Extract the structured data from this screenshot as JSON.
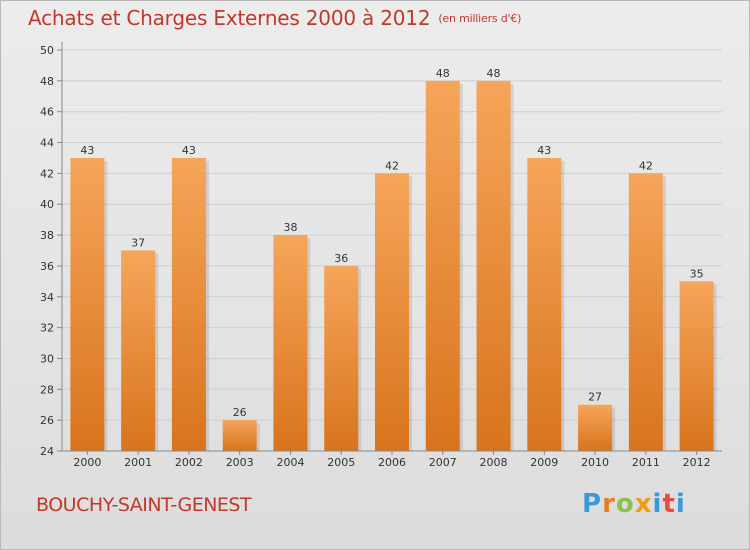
{
  "chart_data": {
    "type": "bar",
    "title": "Achats et Charges Externes 2000 à 2012",
    "subtitle": "(en milliers d'€)",
    "categories": [
      "2000",
      "2001",
      "2002",
      "2003",
      "2004",
      "2005",
      "2006",
      "2007",
      "2008",
      "2009",
      "2010",
      "2011",
      "2012"
    ],
    "values": [
      43,
      37,
      43,
      26,
      38,
      36,
      42,
      48,
      48,
      43,
      27,
      42,
      35
    ],
    "ylim": [
      24,
      50
    ],
    "yticks": [
      24,
      26,
      28,
      30,
      32,
      34,
      36,
      38,
      40,
      42,
      44,
      46,
      48,
      50
    ],
    "grid": true,
    "bar_color_top": "#f6a55a",
    "bar_color_bottom": "#d8741d",
    "title_color": "#c0392b"
  },
  "footer": {
    "place_name": "BOUCHY-SAINT-GENEST",
    "logo_text": "Proxiti"
  }
}
